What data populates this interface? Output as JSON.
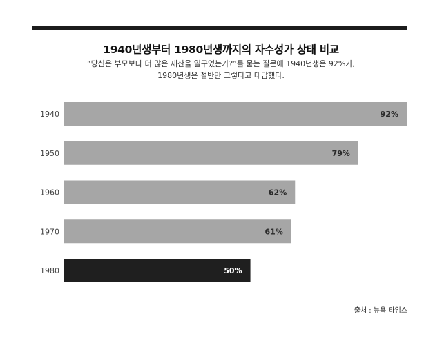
{
  "header": {
    "title": "1940년생부터 1980년생까지의 자수성가 상태 비교",
    "subtitle_line1": "“당신은 부모보다 더 많은 재산을 일구었는가?”를 묻는 질문에 1940년생은 92%가,",
    "subtitle_line2": "1980년생은 절반만 그렇다고 대답했다."
  },
  "footer": {
    "source": "출처 : 뉴욕 타임스"
  },
  "colors": {
    "bar_default": "#a6a6a6",
    "bar_highlight": "#1f1f1f",
    "label_on_default": "#2a2a2a",
    "label_on_highlight": "#ffffff",
    "rule_dark": "#1c1c1c"
  },
  "chart_data": {
    "type": "bar",
    "orientation": "horizontal",
    "title": "1940년생부터 1980년생까지의 자수성가 상태 비교",
    "categories": [
      "1940",
      "1950",
      "1960",
      "1970",
      "1980"
    ],
    "values": [
      92,
      79,
      62,
      61,
      50
    ],
    "value_labels": [
      "92%",
      "79%",
      "62%",
      "61%",
      "50%"
    ],
    "highlight_index": 4,
    "xlim": [
      0,
      92
    ],
    "grid": false,
    "legend": "none"
  }
}
